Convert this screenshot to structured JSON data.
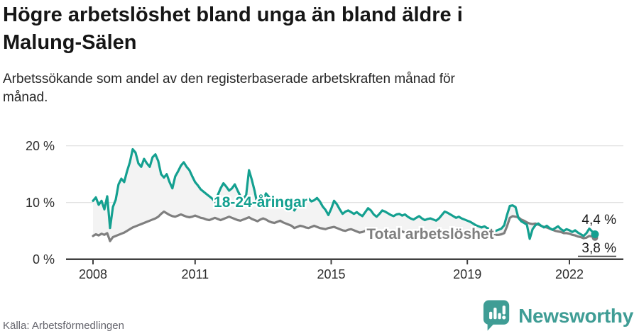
{
  "header": {
    "title": "Högre arbetslöshet bland unga än bland äldre i Malung-Sälen",
    "title_lines": [
      "Högre arbetslöshet bland unga än bland äldre i",
      "Malung-Sälen"
    ],
    "subtitle": "Arbetssökande som andel av den registerbaserade arbetskraften månad för månad.",
    "subtitle_lines": [
      "Arbetssökande som andel av den registerbaserade arbetskraften månad för",
      "månad."
    ]
  },
  "footer": {
    "source": "Källa: Arbetsförmedlingen",
    "brand": "Newsworthy",
    "logo_icon": "speech-bubble-bar-chart",
    "brand_color": "#3f9d95"
  },
  "chart_data": {
    "type": "line",
    "title": "Högre arbetslöshet bland unga än bland äldre i Malung-Sälen",
    "unit": "%",
    "grid": "horizontal",
    "legend_position": "inline-on-chart",
    "x_start": "2008-01",
    "x_end": "2022-10",
    "x_interval": "monthly",
    "x_tick_labels": [
      "2008",
      "2011",
      "2015",
      "2019",
      "2022"
    ],
    "y_tick_labels": [
      "20 %",
      "10 %",
      "0 %"
    ],
    "ylim": [
      0,
      22
    ],
    "band_fill_between_series": "#f3f3f3",
    "series": [
      {
        "name": "18-24-åringar",
        "color": "#14a090",
        "end_label": "4,4 %",
        "end_value": 4.4,
        "values": [
          10.3,
          10.9,
          9.6,
          10.3,
          8.8,
          11.1,
          5.5,
          9.2,
          10.5,
          13.2,
          14.2,
          13.6,
          15.5,
          17.1,
          19.4,
          18.8,
          16.9,
          16.3,
          17.7,
          16.9,
          16.3,
          18.0,
          18.5,
          17.3,
          15.0,
          14.4,
          15.0,
          13.6,
          12.5,
          14.6,
          15.5,
          16.5,
          17.1,
          16.3,
          15.7,
          14.6,
          13.6,
          13.0,
          12.3,
          11.9,
          11.5,
          11.1,
          10.7,
          10.1,
          11.3,
          12.5,
          13.4,
          12.8,
          12.1,
          12.5,
          13.2,
          12.1,
          11.1,
          10.7,
          11.3,
          15.7,
          14.0,
          12.0,
          9.5,
          9.8,
          10.4,
          11.6,
          11.0,
          10.3,
          9.6,
          10.2,
          10.6,
          10.0,
          9.5,
          9.8,
          9.2,
          8.6,
          9.4,
          9.9,
          9.5,
          10.1,
          10.7,
          10.2,
          10.4,
          10.8,
          10.2,
          9.3,
          8.7,
          7.8,
          8.9,
          10.3,
          9.7,
          8.8,
          8.0,
          8.4,
          8.6,
          8.3,
          8.0,
          8.3,
          7.9,
          7.6,
          8.3,
          9.0,
          8.6,
          7.9,
          7.5,
          8.0,
          8.6,
          8.4,
          8.1,
          7.8,
          7.6,
          7.9,
          8.0,
          7.7,
          7.9,
          7.5,
          7.2,
          7.0,
          7.3,
          7.6,
          7.2,
          6.9,
          7.1,
          7.2,
          7.0,
          6.8,
          7.2,
          7.8,
          8.4,
          8.2,
          7.9,
          7.6,
          7.3,
          7.5,
          7.2,
          7.0,
          6.8,
          6.6,
          6.3,
          6.0,
          5.8,
          5.6,
          5.8,
          5.5,
          5.3,
          5.1,
          5.0,
          5.2,
          5.4,
          6.0,
          7.8,
          9.4,
          9.5,
          9.2,
          7.3,
          6.7,
          6.4,
          6.1,
          3.6,
          5.3,
          6.0,
          6.3,
          5.9,
          5.6,
          5.9,
          5.5,
          5.2,
          5.5,
          5.8,
          5.3,
          5.0,
          5.3,
          5.1,
          4.8,
          5.1,
          4.7,
          4.4,
          4.1,
          4.6,
          5.4,
          4.9,
          4.4
        ]
      },
      {
        "name": "Total arbetslöshet",
        "color": "#7f7f7f",
        "end_label": "3,8 %",
        "end_value": 3.8,
        "values": [
          4.1,
          4.4,
          4.2,
          4.5,
          4.3,
          4.6,
          3.2,
          3.9,
          4.1,
          4.3,
          4.5,
          4.7,
          5.0,
          5.3,
          5.6,
          5.8,
          6.0,
          6.2,
          6.4,
          6.6,
          6.8,
          7.0,
          7.2,
          7.5,
          8.0,
          8.4,
          8.1,
          7.8,
          7.6,
          7.5,
          7.7,
          7.9,
          7.7,
          7.5,
          7.4,
          7.5,
          7.7,
          7.5,
          7.3,
          7.2,
          7.0,
          6.9,
          7.1,
          7.3,
          7.1,
          6.9,
          7.1,
          7.3,
          7.5,
          7.3,
          7.1,
          6.9,
          6.8,
          7.0,
          7.2,
          7.4,
          7.1,
          6.9,
          6.7,
          7.0,
          7.2,
          7.0,
          6.7,
          6.5,
          6.4,
          6.6,
          6.8,
          6.5,
          6.3,
          6.1,
          5.9,
          5.5,
          5.7,
          5.9,
          5.8,
          5.6,
          5.5,
          5.7,
          5.9,
          5.7,
          5.5,
          5.4,
          5.3,
          5.5,
          5.6,
          5.7,
          5.5,
          5.3,
          5.1,
          5.0,
          5.2,
          5.3,
          5.1,
          4.9,
          4.7,
          4.8,
          5.0,
          5.1,
          4.9,
          4.7,
          4.5,
          4.6,
          4.8,
          4.9,
          4.7,
          4.6,
          4.5,
          4.6,
          4.8,
          4.9,
          4.7,
          4.6,
          4.5,
          4.4,
          4.6,
          4.7,
          4.6,
          4.5,
          4.4,
          4.5,
          4.6,
          4.5,
          4.4,
          4.5,
          4.7,
          4.6,
          4.4,
          4.3,
          4.2,
          4.3,
          4.4,
          4.5,
          4.6,
          4.5,
          4.4,
          4.3,
          4.2,
          4.3,
          4.4,
          4.3,
          4.2,
          4.2,
          4.3,
          4.3,
          4.4,
          4.6,
          5.8,
          7.3,
          7.6,
          7.5,
          7.4,
          7.0,
          6.8,
          6.5,
          6.3,
          6.2,
          6.3,
          6.1,
          5.9,
          5.7,
          5.6,
          5.4,
          5.2,
          5.0,
          4.9,
          4.8,
          4.6,
          4.6,
          4.5,
          4.3,
          4.2,
          4.0,
          3.9,
          3.7,
          3.8,
          4.1,
          4.0,
          3.8
        ]
      }
    ]
  }
}
